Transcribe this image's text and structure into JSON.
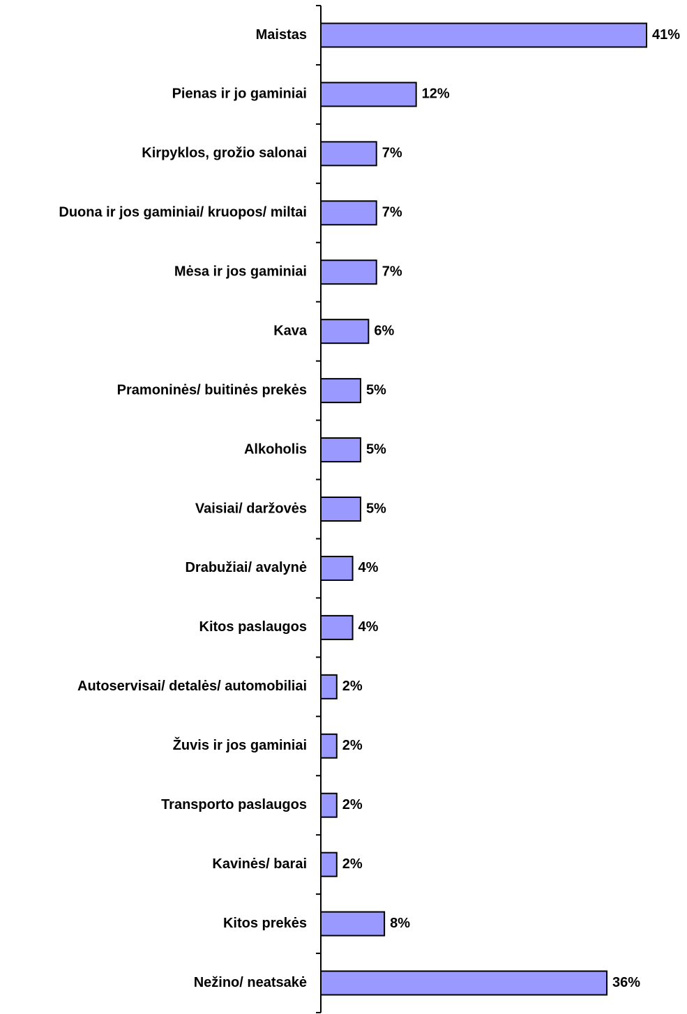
{
  "chart_data": {
    "type": "bar",
    "orientation": "horizontal",
    "categories": [
      "Maistas",
      "Pienas ir jo gaminiai",
      "Kirpyklos, grožio salonai",
      "Duona ir jos gaminiai/ kruopos/ miltai",
      "Mėsa ir jos gaminiai",
      "Kava",
      "Pramoninės/ buitinės prekės",
      "Alkoholis",
      "Vaisiai/ daržovės",
      "Drabužiai/ avalynė",
      "Kitos paslaugos",
      "Autoservisai/ detalės/ automobiliai",
      "Žuvis ir jos gaminiai",
      "Transporto paslaugos",
      "Kavinės/ barai",
      "Kitos prekės",
      "Nežino/ neatsakė"
    ],
    "values": [
      41,
      12,
      7,
      7,
      7,
      6,
      5,
      5,
      5,
      4,
      4,
      2,
      2,
      2,
      2,
      8,
      36
    ],
    "value_labels": [
      "41%",
      "12%",
      "7%",
      "7%",
      "7%",
      "6%",
      "5%",
      "5%",
      "5%",
      "4%",
      "4%",
      "2%",
      "2%",
      "2%",
      "2%",
      "8%",
      "36%"
    ],
    "color": "#9999ff"
  }
}
